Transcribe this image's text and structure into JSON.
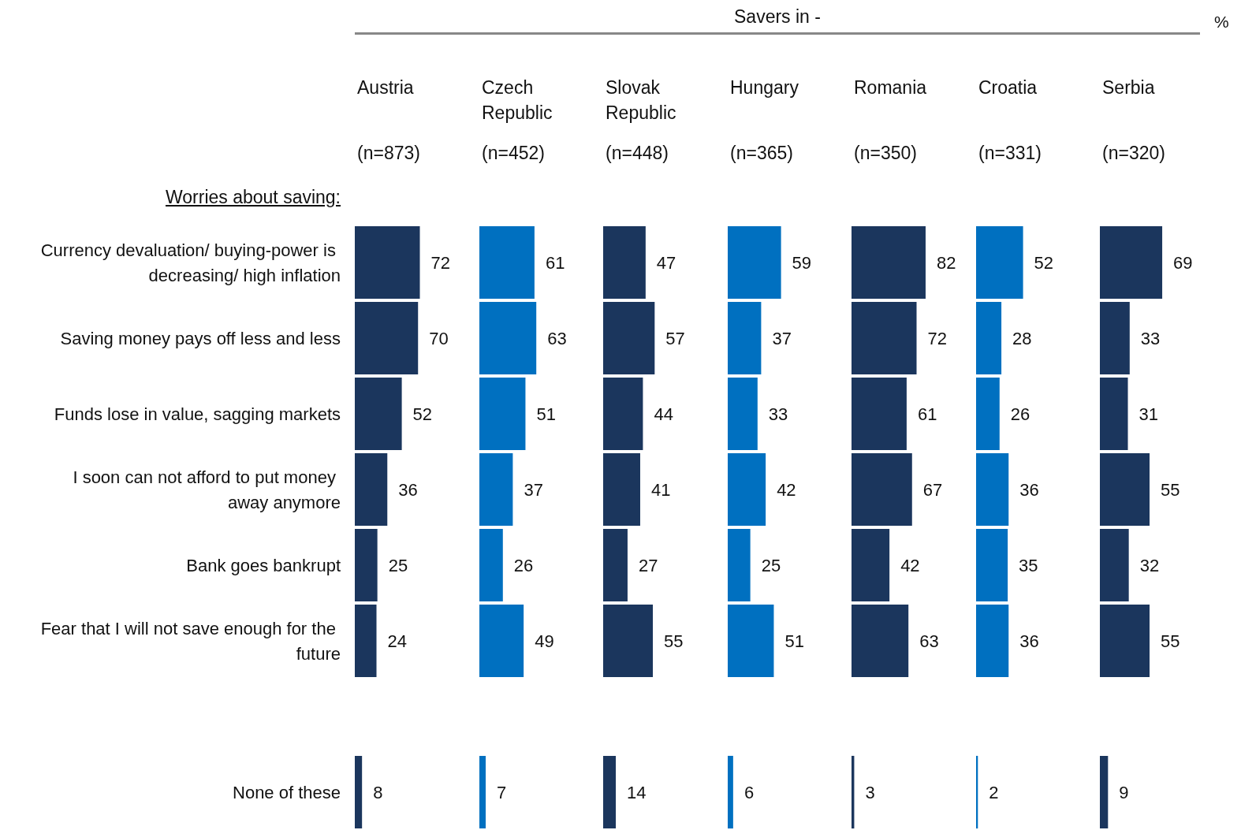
{
  "chart_data": [
    {
      "type": "bar",
      "orientation": "horizontal",
      "title": "Austria",
      "subtitle": "(n=873)",
      "categories": [
        "Currency devaluation/ buying-power is decreasing/ high inflation",
        "Saving money pays off less and less",
        "Funds lose in value, sagging markets",
        "I soon can not afford to put money away anymore",
        "Bank goes bankrupt",
        "Fear that I will not save enough for the future",
        null,
        "None of these"
      ],
      "values": [
        72,
        70,
        52,
        36,
        25,
        24,
        null,
        8
      ],
      "color": "#1b365d",
      "data_labels": true,
      "tick_labels": "y",
      "annotations": [
        "Savers in -",
        "%",
        "Worries about saving:"
      ]
    },
    {
      "type": "bar",
      "orientation": "horizontal",
      "title": "Czech Republic",
      "subtitle": "(n=452)",
      "values": [
        61,
        63,
        51,
        37,
        26,
        49,
        null,
        7
      ],
      "color": "#0070c0",
      "data_labels": true,
      "tick_labels": false
    },
    {
      "type": "bar",
      "orientation": "horizontal",
      "title": "Slovak Republic",
      "subtitle": "(n=448)",
      "values": [
        47,
        57,
        44,
        41,
        27,
        55,
        null,
        14
      ],
      "color": "#1b365d",
      "data_labels": true,
      "tick_labels": false
    },
    {
      "type": "bar",
      "orientation": "horizontal",
      "title": "Hungary",
      "subtitle": "(n=365)",
      "values": [
        59,
        37,
        33,
        42,
        25,
        51,
        null,
        6
      ],
      "color": "#0070c0",
      "data_labels": true,
      "tick_labels": false
    },
    {
      "type": "bar",
      "orientation": "horizontal",
      "title": "Romania",
      "subtitle": "(n=350)",
      "values": [
        82,
        72,
        61,
        67,
        42,
        63,
        null,
        3
      ],
      "color": "#1b365d",
      "data_labels": true,
      "tick_labels": false
    },
    {
      "type": "bar",
      "orientation": "horizontal",
      "title": "Croatia",
      "subtitle": "(n=331)",
      "values": [
        52,
        28,
        26,
        36,
        35,
        36,
        null,
        2
      ],
      "color": "#0070c0",
      "data_labels": true,
      "tick_labels": false
    },
    {
      "type": "bar",
      "orientation": "horizontal",
      "title": "Serbia",
      "subtitle": "(n=320)",
      "values": [
        69,
        33,
        31,
        55,
        32,
        55,
        null,
        9
      ],
      "color": "#1b365d",
      "data_labels": true,
      "tick_labels": false
    }
  ]
}
